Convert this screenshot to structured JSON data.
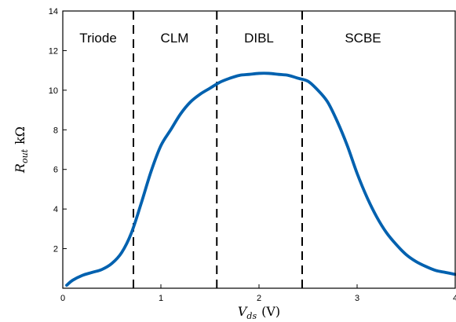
{
  "chart_data": {
    "type": "line",
    "title": "",
    "xlabel": {
      "main": "V",
      "sub": "ds",
      "unit": "(V)"
    },
    "ylabel": {
      "main": "R",
      "sub": "out",
      "unit": "kΩ"
    },
    "xlim": [
      0,
      4
    ],
    "ylim": [
      0,
      14
    ],
    "xticks": [
      0,
      1,
      2,
      3,
      4
    ],
    "yticks": [
      2,
      4,
      6,
      8,
      10,
      12,
      14
    ],
    "grid": false,
    "line_color": "#0061AF",
    "dividers": [
      0.72,
      1.57,
      2.44
    ],
    "regions": [
      {
        "label": "Triode",
        "x_center": 0.36
      },
      {
        "label": "CLM",
        "x_center": 1.14
      },
      {
        "label": "DIBL",
        "x_center": 2.0
      },
      {
        "label": "SCBE",
        "x_center": 3.06
      }
    ],
    "series": [
      {
        "x": [
          0.04,
          0.1,
          0.2,
          0.3,
          0.4,
          0.5,
          0.6,
          0.7,
          0.8,
          0.9,
          1.0,
          1.1,
          1.2,
          1.3,
          1.4,
          1.5,
          1.6,
          1.7,
          1.8,
          1.9,
          2.0,
          2.1,
          2.2,
          2.3,
          2.4,
          2.5,
          2.6,
          2.7,
          2.8,
          2.9,
          3.0,
          3.1,
          3.2,
          3.3,
          3.4,
          3.5,
          3.6,
          3.7,
          3.8,
          3.9,
          4.0
        ],
        "y": [
          0.15,
          0.4,
          0.65,
          0.8,
          0.95,
          1.25,
          1.8,
          2.8,
          4.3,
          5.9,
          7.2,
          8.0,
          8.8,
          9.4,
          9.8,
          10.1,
          10.4,
          10.6,
          10.75,
          10.8,
          10.85,
          10.85,
          10.8,
          10.75,
          10.6,
          10.45,
          10.0,
          9.4,
          8.4,
          7.2,
          5.8,
          4.6,
          3.6,
          2.8,
          2.2,
          1.7,
          1.35,
          1.1,
          0.9,
          0.8,
          0.7
        ]
      }
    ]
  }
}
